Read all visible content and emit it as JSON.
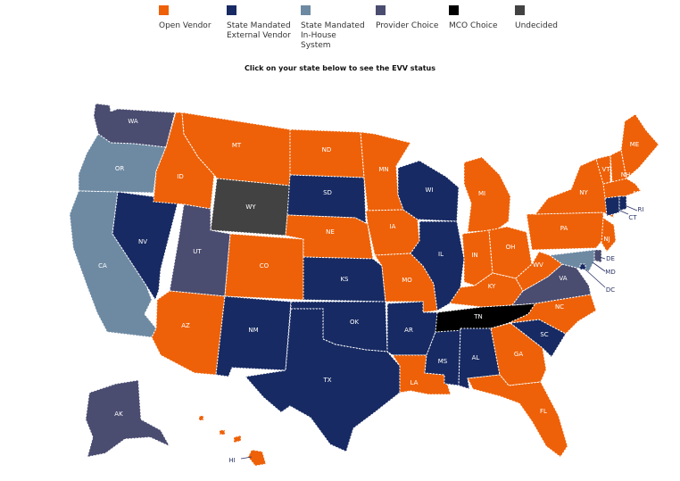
{
  "legend": [
    {
      "id": "open",
      "label": "Open Vendor",
      "color": "#ee6108"
    },
    {
      "id": "ext",
      "label": "State Mandated External Vendor",
      "color": "#172a63"
    },
    {
      "id": "inh",
      "label": "State Mandated In-House System",
      "color": "#6e8aa3"
    },
    {
      "id": "prov",
      "label": "Provider Choice",
      "color": "#4a4c70"
    },
    {
      "id": "mco",
      "label": "MCO Choice",
      "color": "#000000"
    },
    {
      "id": "und",
      "label": "Undecided",
      "color": "#424242"
    }
  ],
  "instruction": "Click on your state below to see the EVV status",
  "states": {
    "WA": "prov",
    "OR": "inh",
    "CA": "inh",
    "NV": "ext",
    "ID": "open",
    "MT": "open",
    "WY": "und",
    "UT": "prov",
    "AZ": "open",
    "CO": "open",
    "NM": "ext",
    "ND": "open",
    "SD": "ext",
    "NE": "open",
    "KS": "ext",
    "OK": "ext",
    "TX": "ext",
    "MN": "open",
    "IA": "open",
    "MO": "open",
    "AR": "ext",
    "LA": "open",
    "WI": "ext",
    "IL": "ext",
    "MS": "ext",
    "MI": "open",
    "IN": "open",
    "KY": "open",
    "TN": "mco",
    "AL": "ext",
    "OH": "open",
    "WV": "open",
    "VA": "prov",
    "NC": "open",
    "SC": "ext",
    "GA": "open",
    "FL": "open",
    "PA": "open",
    "NY": "open",
    "VT": "open",
    "NH": "open",
    "ME": "open",
    "MA": "open",
    "CT": "ext",
    "RI": "ext",
    "NJ": "open",
    "DE": "prov",
    "MD": "inh",
    "DC": "ext",
    "AK": "prov",
    "HI": "open"
  }
}
